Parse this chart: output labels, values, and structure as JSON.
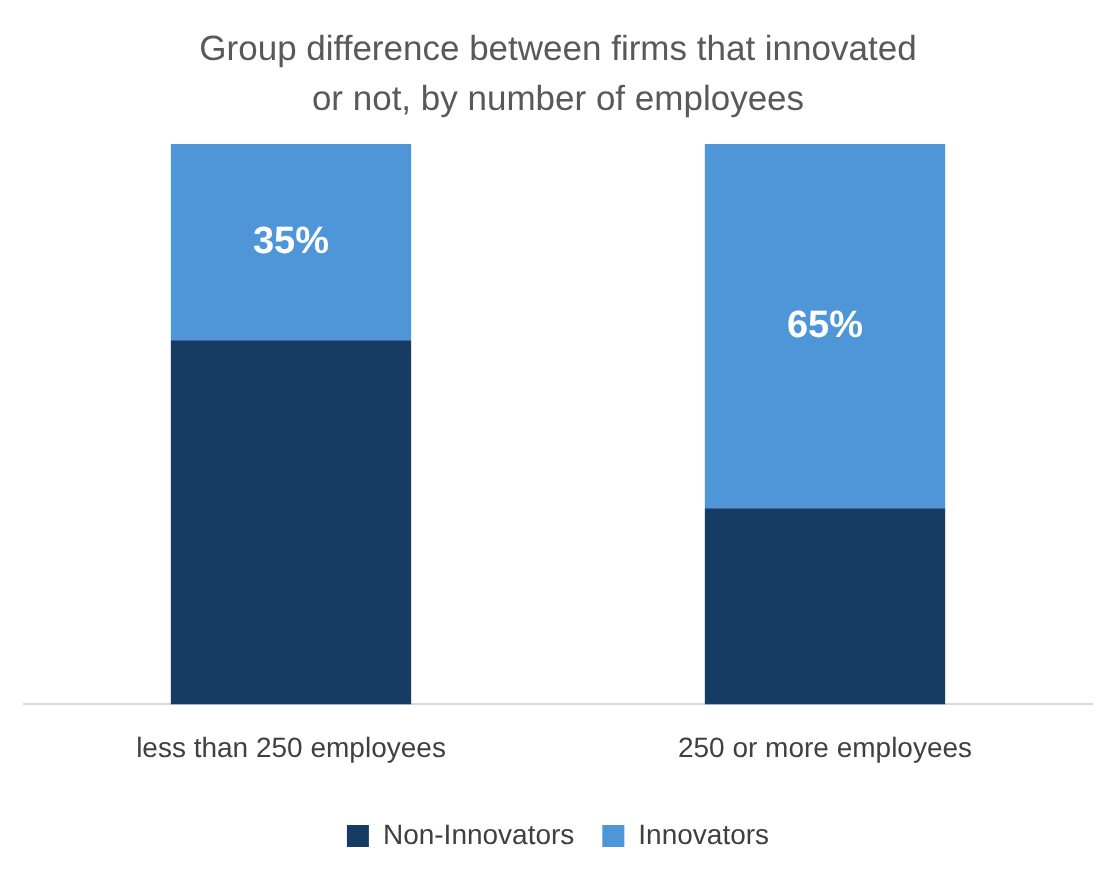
{
  "chart_data": {
    "type": "bar",
    "title": "Group difference between firms that innovated or not, by number of employees",
    "categories": [
      "less than 250 employees",
      "250 or more employees"
    ],
    "stacked": true,
    "ylim": [
      0,
      100
    ],
    "tick_labels": "x",
    "grid": false,
    "legend": "bottom",
    "series": [
      {
        "name": "Non-Innovators",
        "color": "#173c64",
        "values": [
          65,
          35
        ]
      },
      {
        "name": "Innovators",
        "color": "#4f96d8",
        "values": [
          35,
          65
        ],
        "value_labels": [
          "35%",
          "65%"
        ]
      }
    ]
  }
}
